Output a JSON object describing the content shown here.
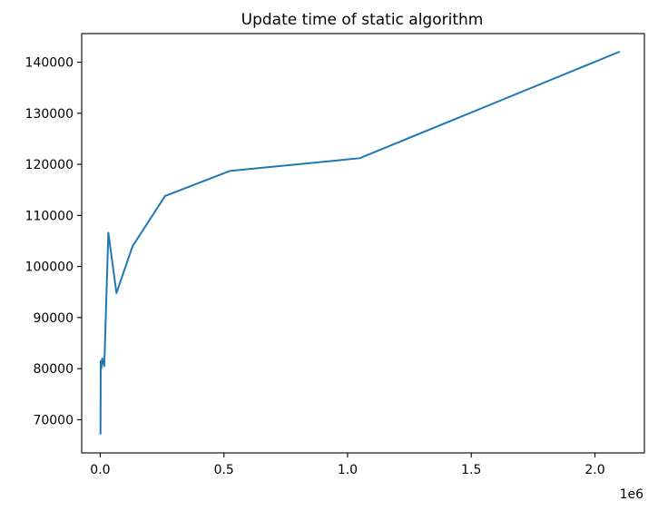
{
  "chart_data": {
    "type": "line",
    "title": "Update time of static algorithm",
    "xlabel": "",
    "ylabel": "",
    "x_offset_text": "1e6",
    "xlim": [
      -75000,
      2200000
    ],
    "ylim": [
      63500,
      145600
    ],
    "x_ticks": [
      0,
      500000,
      1000000,
      1500000,
      2000000
    ],
    "x_tick_labels": [
      "0.0",
      "0.5",
      "1.0",
      "1.5",
      "2.0"
    ],
    "y_ticks": [
      70000,
      80000,
      90000,
      100000,
      110000,
      120000,
      130000,
      140000
    ],
    "y_tick_labels": [
      "70000",
      "80000",
      "90000",
      "100000",
      "110000",
      "120000",
      "130000",
      "140000"
    ],
    "grid": false,
    "series": [
      {
        "color": "#1f77b4",
        "x": [
          1024,
          2048,
          4096,
          8192,
          16384,
          32768,
          65536,
          131072,
          262144,
          524288,
          1048576,
          2097152
        ],
        "y": [
          67300,
          81500,
          80000,
          82000,
          80500,
          106600,
          94800,
          104000,
          113800,
          118700,
          121200,
          142000
        ]
      }
    ]
  }
}
